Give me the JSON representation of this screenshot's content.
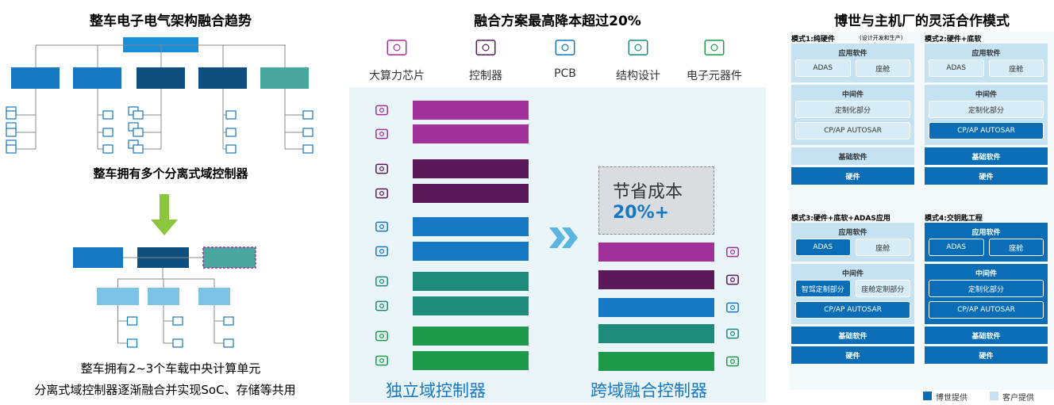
{
  "left": {
    "title": "整车电子电气架构融合趋势",
    "caption_top": "整车拥有多个分离式域控制器",
    "caption_bottom": [
      "整车拥有2~3个车载中央计算单元",
      "分离式域控制器逐渐融合并实现SoC、存储等共用"
    ]
  },
  "middle": {
    "title": "融合方案最高降本超过20%",
    "icons": [
      "大算力芯片",
      "控制器",
      "PCB",
      "结构设计",
      "电子元器件"
    ],
    "savings": {
      "label": "节省成本",
      "value": "20%+"
    },
    "left_label": "独立域控制器",
    "right_label": "跨域融合控制器"
  },
  "right": {
    "title": "博世与主机厂的灵活合作模式",
    "modes": [
      {
        "title": "模式1:纯硬件",
        "note": "(设计开发和生产)",
        "groups": [
          {
            "label": "应用软件",
            "color": "#c4e2f2",
            "rows": [
              [
                {
                  "label": "ADAS",
                  "color": "#d6ecf7"
                },
                {
                  "label": "座舱",
                  "color": "#d6ecf7"
                }
              ]
            ]
          },
          {
            "label": "中间件",
            "color": "#c4e2f2",
            "rows": [
              [
                {
                  "label": "定制化部分",
                  "color": "#d6ecf7"
                }
              ],
              [
                {
                  "label": "CP/AP AUTOSAR",
                  "color": "#d6ecf7"
                }
              ]
            ]
          },
          {
            "label": "基础软件",
            "color": "#c4e2f2"
          },
          {
            "label": "硬件",
            "color": "#0a6db5"
          }
        ]
      },
      {
        "title": "模式2:硬件+底软",
        "groups": [
          {
            "label": "应用软件",
            "color": "#c4e2f2",
            "rows": [
              [
                {
                  "label": "ADAS",
                  "color": "#d6ecf7"
                },
                {
                  "label": "座舱",
                  "color": "#d6ecf7"
                }
              ]
            ]
          },
          {
            "label": "中间件",
            "color": "#c4e2f2",
            "rows": [
              [
                {
                  "label": "定制化部分",
                  "color": "#d6ecf7"
                }
              ],
              [
                {
                  "label": "CP/AP AUTOSAR",
                  "color": "#0a6db5"
                }
              ]
            ]
          },
          {
            "label": "基础软件",
            "color": "#0a6db5"
          },
          {
            "label": "硬件",
            "color": "#0a6db5"
          }
        ]
      },
      {
        "title": "模式3:硬件+底软+ADAS应用",
        "groups": [
          {
            "label": "应用软件",
            "color": "#c4e2f2",
            "rows": [
              [
                {
                  "label": "ADAS",
                  "color": "#0a6db5"
                },
                {
                  "label": "座舱",
                  "color": "#d6ecf7"
                }
              ]
            ]
          },
          {
            "label": "中间件",
            "color": "#c4e2f2",
            "rows": [
              [
                {
                  "label": "智驾定制部分",
                  "color": "#0a6db5"
                },
                {
                  "label": "座舱定制部分",
                  "color": "#d6ecf7"
                }
              ],
              [
                {
                  "label": "CP/AP AUTOSAR",
                  "color": "#0a6db5"
                }
              ]
            ]
          },
          {
            "label": "基础软件",
            "color": "#0a6db5"
          },
          {
            "label": "硬件",
            "color": "#0a6db5"
          }
        ]
      },
      {
        "title": "模式4:交钥匙工程",
        "groups": [
          {
            "label": "应用软件",
            "color": "#0a6db5",
            "rows": [
              [
                {
                  "label": "ADAS",
                  "color": "#0a6db5"
                },
                {
                  "label": "座舱",
                  "color": "#0a6db5"
                }
              ]
            ]
          },
          {
            "label": "中间件",
            "color": "#0a6db5",
            "rows": [
              [
                {
                  "label": "定制化部分",
                  "color": "#0a6db5"
                }
              ],
              [
                {
                  "label": "CP/AP AUTOSAR",
                  "color": "#0a6db5"
                }
              ]
            ]
          },
          {
            "label": "基础软件",
            "color": "#0a6db5"
          },
          {
            "label": "硬件",
            "color": "#0a6db5"
          }
        ]
      }
    ],
    "legend": [
      {
        "label": "博世提供",
        "color": "#0a6db5"
      },
      {
        "label": "客户提供",
        "color": "#c4e2f2"
      }
    ]
  }
}
